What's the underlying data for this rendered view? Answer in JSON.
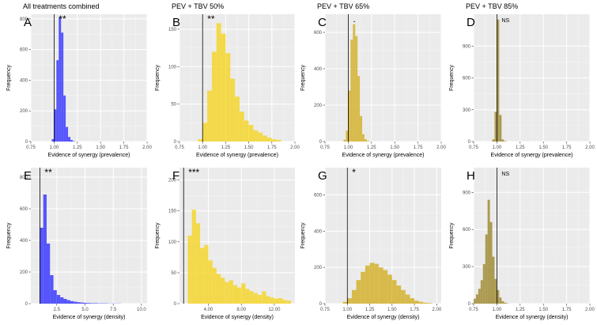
{
  "chart_data": [
    {
      "type": "bar",
      "panel": "A",
      "title": "All treatments combined",
      "significance": "**",
      "xlabel": "Evidence of synergy (prevalence)",
      "ylabel": "Frequency",
      "color": "#3b3bff",
      "xlim": [
        0.75,
        2.0
      ],
      "xticks": [
        0.75,
        1.0,
        1.25,
        1.5,
        1.75,
        2.0
      ],
      "ylim": [
        0,
        830
      ],
      "yticks": [
        0,
        200,
        400,
        600,
        800
      ],
      "vline": 1.0,
      "bin_start": 0.975,
      "bin_width": 0.025,
      "values": [
        15,
        210,
        530,
        810,
        710,
        300,
        95,
        30,
        10,
        3
      ]
    },
    {
      "type": "bar",
      "panel": "B",
      "title": "PEV + TBV 50%",
      "significance": "**",
      "xlabel": "Evidence of synergy (prevalence)",
      "ylabel": "Frequency",
      "color": "#f5d62e",
      "xlim": [
        0.75,
        2.0
      ],
      "xticks": [
        0.75,
        1.0,
        1.25,
        1.5,
        1.75,
        2.0
      ],
      "ylim": [
        0,
        170
      ],
      "yticks": [
        0,
        50,
        100,
        150
      ],
      "vline": 1.0,
      "bin_start": 0.95,
      "bin_width": 0.05,
      "values": [
        3,
        25,
        68,
        120,
        158,
        144,
        118,
        84,
        60,
        40,
        28,
        22,
        15,
        12,
        8,
        5,
        3,
        2
      ]
    },
    {
      "type": "bar",
      "panel": "C",
      "title": "PEV + TBV 65%",
      "significance": ".",
      "xlabel": "Evidence of synergy (prevalence)",
      "ylabel": "Frequency",
      "color": "#d4b22e",
      "xlim": [
        0.75,
        2.0
      ],
      "xticks": [
        0.75,
        1.0,
        1.25,
        1.5,
        1.75,
        2.0
      ],
      "ylim": [
        0,
        700
      ],
      "yticks": [
        0,
        200,
        400,
        600
      ],
      "vline": 1.0,
      "bin_start": 0.95,
      "bin_width": 0.025,
      "values": [
        10,
        60,
        280,
        560,
        645,
        580,
        360,
        140,
        40,
        12,
        4
      ]
    },
    {
      "type": "bar",
      "panel": "D",
      "title": "PEV + TBV 85%",
      "significance": "NS",
      "xlabel": "Evidence of synergy (prevalence)",
      "ylabel": "Frequency",
      "color": "#a08c36",
      "xlim": [
        0.75,
        2.0
      ],
      "xticks": [
        0.75,
        1.0,
        1.25,
        1.5,
        1.75,
        2.0
      ],
      "ylim": [
        0,
        1200
      ],
      "yticks": [
        0,
        300,
        600,
        900
      ],
      "vline": 1.0,
      "bin_start": 0.95,
      "bin_width": 0.025,
      "values": [
        20,
        280,
        1150,
        250,
        20,
        5
      ]
    },
    {
      "type": "bar",
      "panel": "E",
      "title": "",
      "significance": "**",
      "xlabel": "Evidence of synergy (density)",
      "ylabel": "Frequency",
      "color": "#3b3bff",
      "xlim": [
        0.2,
        10.5
      ],
      "xticks": [
        2.5,
        5.0,
        7.5,
        10.0
      ],
      "xticklabels": [
        "2.5",
        "5.0",
        "7.5",
        "10.0"
      ],
      "ylim": [
        0,
        860
      ],
      "yticks": [
        0,
        200,
        400,
        600,
        800
      ],
      "vline": 1.0,
      "bin_start": 1.0,
      "bin_width": 0.3,
      "values": [
        480,
        690,
        380,
        180,
        85,
        55,
        40,
        30,
        22,
        16,
        12,
        9,
        7,
        5,
        4,
        3,
        3,
        2,
        2,
        2,
        1,
        1,
        1,
        1
      ]
    },
    {
      "type": "bar",
      "panel": "F",
      "title": "",
      "significance": "***",
      "xlabel": "Evidence of synergy (density)",
      "ylabel": "Frequency",
      "color": "#f5d62e",
      "xlim": [
        0.5,
        14.5
      ],
      "xticks": [
        4,
        8,
        12
      ],
      "ylim": [
        0,
        220
      ],
      "yticks": [
        0,
        50,
        100,
        150,
        200
      ],
      "vline": 1.0,
      "bin_start": 1.5,
      "bin_width": 0.5,
      "values": [
        110,
        152,
        130,
        90,
        95,
        70,
        58,
        48,
        42,
        35,
        38,
        30,
        26,
        33,
        24,
        20,
        17,
        14,
        20,
        12,
        10,
        8,
        9,
        6,
        5
      ]
    },
    {
      "type": "bar",
      "panel": "G",
      "title": "",
      "significance": "*",
      "xlabel": "Evidence of synergy (density)",
      "ylabel": "Frequency",
      "color": "#d4b22e",
      "xlim": [
        0.75,
        2.05
      ],
      "xticks": [
        0.75,
        1.0,
        1.25,
        1.5,
        1.75,
        2.0
      ],
      "ylim": [
        0,
        750
      ],
      "yticks": [
        0,
        200,
        400,
        600
      ],
      "vline": 1.0,
      "bin_start": 0.95,
      "bin_width": 0.05,
      "values": [
        10,
        30,
        75,
        130,
        175,
        210,
        225,
        220,
        200,
        185,
        160,
        130,
        100,
        75,
        50,
        30,
        16,
        10,
        5,
        3
      ]
    },
    {
      "type": "bar",
      "panel": "H",
      "title": "",
      "significance": "NS",
      "xlabel": "Evidence of synergy (density)",
      "ylabel": "Frequency",
      "color": "#a08c36",
      "xlim": [
        0.75,
        2.0
      ],
      "xticks": [
        0.75,
        1.0,
        1.25,
        1.5,
        1.75,
        2.0
      ],
      "ylim": [
        0,
        1100
      ],
      "yticks": [
        0,
        300,
        600,
        900
      ],
      "vline": 1.0,
      "bin_start": 0.75,
      "bin_width": 0.025,
      "values": [
        40,
        75,
        120,
        190,
        320,
        560,
        840,
        660,
        380,
        200,
        110,
        50,
        20,
        8,
        3
      ]
    }
  ]
}
